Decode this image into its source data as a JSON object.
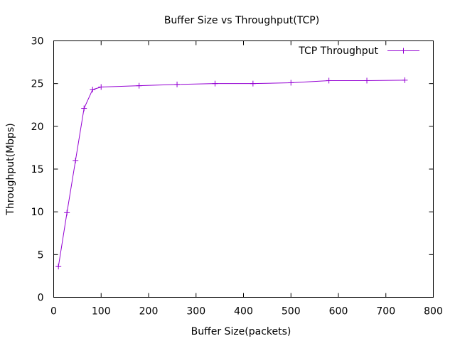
{
  "chart_data": {
    "type": "line",
    "title": "Buffer Size vs Throughput(TCP)",
    "xlabel": "Buffer Size(packets)",
    "ylabel": "Throughput(Mbps)",
    "xlim": [
      0,
      800
    ],
    "ylim": [
      0,
      30
    ],
    "xticks": [
      0,
      100,
      200,
      300,
      400,
      500,
      600,
      700,
      800
    ],
    "yticks": [
      0,
      5,
      10,
      15,
      20,
      25,
      30
    ],
    "grid": false,
    "legend_position": "top-right",
    "series": [
      {
        "name": "TCP Throughput",
        "color": "#9400d3",
        "marker": "plus",
        "x": [
          10,
          28,
          46,
          64,
          82,
          100,
          180,
          260,
          340,
          420,
          500,
          580,
          660,
          740
        ],
        "y": [
          3.6,
          9.9,
          16.0,
          22.1,
          24.3,
          24.6,
          24.75,
          24.9,
          25.0,
          25.0,
          25.1,
          25.35,
          25.35,
          25.4
        ]
      }
    ]
  }
}
